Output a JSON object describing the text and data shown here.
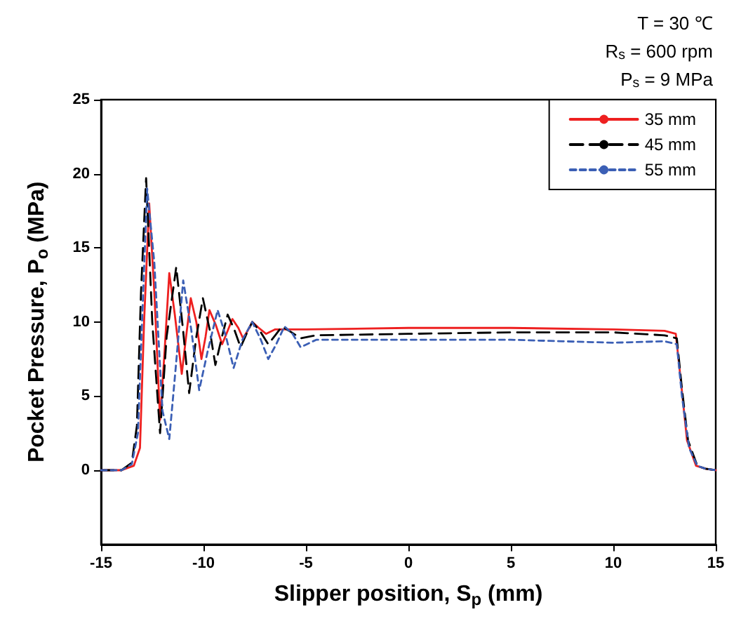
{
  "chart_data": {
    "type": "line",
    "xlabel": "Slipper position, S$_{p}$ (mm)",
    "ylabel": "Pocket Pressure, P$_{o}$ (MPa)",
    "annotations": [
      "T = 30 ℃",
      "R$_{s}$ = 600 rpm",
      "P$_{s}$ = 9 MPa"
    ],
    "xlim": [
      -15,
      15
    ],
    "xticks": [
      -15,
      -10,
      -5,
      0,
      5,
      10,
      15
    ],
    "ylim": [
      -5,
      25
    ],
    "yticks": [
      0,
      5,
      10,
      15,
      20,
      25
    ],
    "grid": false,
    "legend": "top right",
    "marker": "none",
    "series": [
      {
        "name": "35 mm",
        "color": "#ee2020",
        "line_style": "solid",
        "x": [
          -15,
          -14,
          -13.4,
          -13.1,
          -12.9,
          -12.65,
          -12.4,
          -12.12,
          -11.9,
          -11.67,
          -11.4,
          -11.06,
          -10.85,
          -10.62,
          -10.35,
          -10.1,
          -9.9,
          -9.71,
          -9.4,
          -9.09,
          -8.85,
          -8.59,
          -8.3,
          -8.07,
          -7.85,
          -7.62,
          -7.3,
          -6.95,
          -6.5,
          -5,
          0,
          5,
          10,
          12.5,
          13.05,
          13.3,
          13.6,
          14.04,
          14.5,
          15
        ],
        "values": [
          0,
          0,
          0.3,
          1.5,
          10,
          18,
          12,
          3.4,
          8,
          13.3,
          10.5,
          6.5,
          9,
          11.6,
          10,
          7.5,
          9,
          10.8,
          9.8,
          8.5,
          9.3,
          10.2,
          9.6,
          8.9,
          9.4,
          10,
          9.6,
          9.2,
          9.5,
          9.5,
          9.6,
          9.6,
          9.5,
          9.4,
          9.2,
          6,
          2,
          0.3,
          0.1,
          0
        ]
      },
      {
        "name": "45 mm",
        "color": "#000000",
        "line_style": "dashed",
        "x": [
          -15,
          -14,
          -13.5,
          -13.25,
          -13.05,
          -12.8,
          -12.5,
          -12.12,
          -11.8,
          -11.33,
          -11.0,
          -10.7,
          -10.35,
          -10.03,
          -9.7,
          -9.42,
          -9.1,
          -8.82,
          -8.5,
          -8.19,
          -7.9,
          -7.62,
          -7.2,
          -6.84,
          -6.5,
          -6.17,
          -5.7,
          -5.26,
          -4.5,
          0,
          5,
          10,
          12.5,
          13.1,
          13.35,
          13.65,
          14.1,
          14.5,
          15
        ],
        "values": [
          0,
          0,
          0.5,
          3,
          12,
          19.7,
          10,
          2.5,
          9,
          13.7,
          9.5,
          5.2,
          9,
          11.6,
          9.5,
          7.1,
          9,
          10.5,
          9.5,
          8.3,
          9.2,
          10,
          9.3,
          8.5,
          9.1,
          9.7,
          9.3,
          8.9,
          9.1,
          9.2,
          9.3,
          9.3,
          9.1,
          8.9,
          5.5,
          2,
          0.3,
          0.1,
          0
        ]
      },
      {
        "name": "55 mm",
        "color": "#3b5fb5",
        "line_style": "dotted",
        "x": [
          -15,
          -14,
          -13.5,
          -13.2,
          -13.0,
          -12.75,
          -12.4,
          -12.0,
          -11.67,
          -11.35,
          -10.99,
          -10.6,
          -10.21,
          -9.8,
          -9.31,
          -8.9,
          -8.53,
          -8.1,
          -7.62,
          -7.2,
          -6.84,
          -6.45,
          -6.05,
          -5.65,
          -5.26,
          -4.5,
          -3,
          0,
          5,
          10,
          12.5,
          13.1,
          13.35,
          13.7,
          14.1,
          14.5,
          15
        ],
        "values": [
          0,
          0,
          0.4,
          2.5,
          10,
          19,
          14,
          4,
          2.1,
          7,
          12.8,
          9.5,
          5.4,
          8,
          10.8,
          9,
          6.9,
          8.8,
          10,
          8.8,
          7.5,
          8.5,
          9.7,
          9.2,
          8.3,
          8.8,
          8.8,
          8.8,
          8.8,
          8.6,
          8.7,
          8.5,
          5,
          1.5,
          0.3,
          0.1,
          0
        ]
      }
    ]
  }
}
